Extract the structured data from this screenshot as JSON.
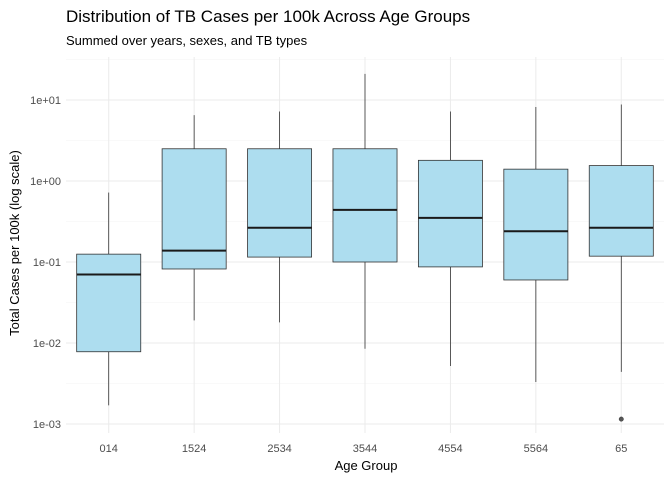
{
  "chart_data": {
    "type": "box",
    "title": "Distribution of TB Cases per 100k Across Age Groups",
    "subtitle": "Summed over years, sexes, and TB types",
    "xlabel": "Age Group",
    "ylabel": "Total Cases per 100k (log scale)",
    "yscale": "log10",
    "ylim": [
      0.00075,
      30
    ],
    "yticks": [
      0.001,
      0.01,
      0.1,
      1,
      10
    ],
    "ytick_labels": [
      "1e-03",
      "1e-02",
      "1e-01",
      "1e+00",
      "1e+01"
    ],
    "categories": [
      "014",
      "1524",
      "2534",
      "3544",
      "4554",
      "5564",
      "65"
    ],
    "boxes": [
      {
        "category": "014",
        "whisker_low": 0.0017,
        "q1": 0.0078,
        "median": 0.07,
        "q3": 0.125,
        "whisker_high": 0.72,
        "outliers": []
      },
      {
        "category": "1524",
        "whisker_low": 0.019,
        "q1": 0.082,
        "median": 0.138,
        "q3": 2.5,
        "whisker_high": 6.5,
        "outliers": []
      },
      {
        "category": "2534",
        "whisker_low": 0.018,
        "q1": 0.115,
        "median": 0.265,
        "q3": 2.5,
        "whisker_high": 7.2,
        "outliers": []
      },
      {
        "category": "3544",
        "whisker_low": 0.0085,
        "q1": 0.1,
        "median": 0.44,
        "q3": 2.5,
        "whisker_high": 21,
        "outliers": []
      },
      {
        "category": "4554",
        "whisker_low": 0.0052,
        "q1": 0.087,
        "median": 0.35,
        "q3": 1.8,
        "whisker_high": 7.2,
        "outliers": []
      },
      {
        "category": "5564",
        "whisker_low": 0.0033,
        "q1": 0.06,
        "median": 0.24,
        "q3": 1.4,
        "whisker_high": 8.2,
        "outliers": []
      },
      {
        "category": "65",
        "whisker_low": 0.0044,
        "q1": 0.118,
        "median": 0.265,
        "q3": 1.55,
        "whisker_high": 8.8,
        "outliers": [
          0.00115
        ]
      }
    ],
    "grid": true,
    "colors": {
      "box_fill": "#ADDDEF",
      "box_stroke": "#333333",
      "median": "#1a1a1a",
      "grid_major": "#ebebeb",
      "grid_minor": "#f4f4f4"
    }
  }
}
